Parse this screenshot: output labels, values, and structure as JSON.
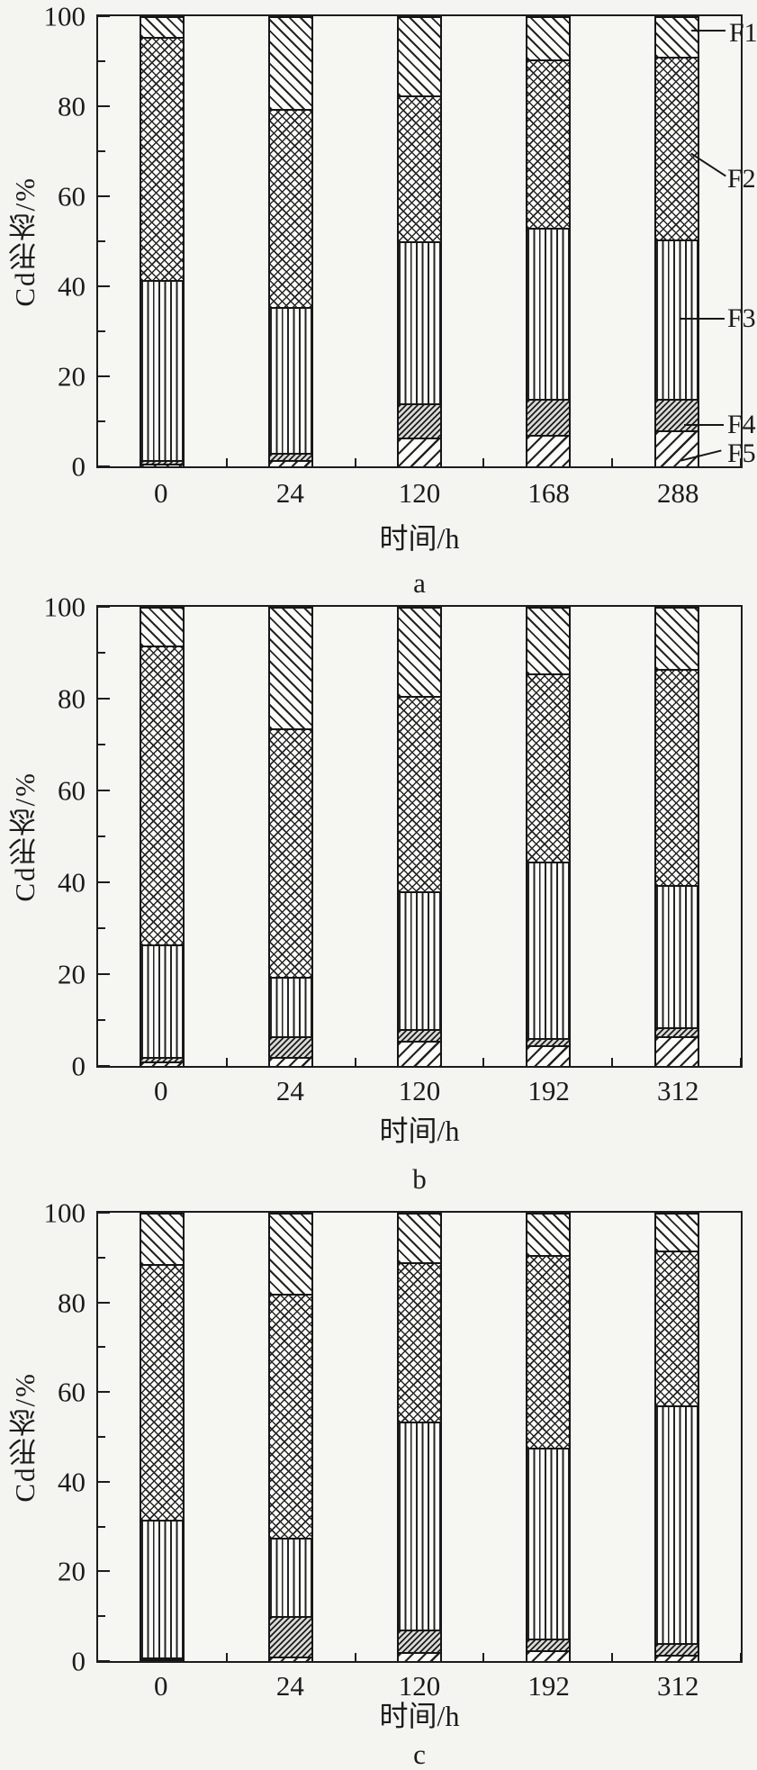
{
  "figure": {
    "ink_color": "#1c1c1c",
    "background_color": "#f4f4f1",
    "ylim": [
      0,
      100
    ]
  },
  "chart_data": [
    {
      "type": "bar",
      "stack_order": "bottom_to_top",
      "subplot_label": "a",
      "xlabel": "时间/h",
      "ylabel": "Cd形态/%",
      "ylim": [
        0,
        100
      ],
      "yticks": [
        0,
        20,
        40,
        60,
        80,
        100
      ],
      "categories": [
        "0",
        "24",
        "120",
        "168",
        "288"
      ],
      "series": [
        {
          "name": "F5",
          "values": [
            0.7,
            1.5,
            6.5,
            7,
            8
          ]
        },
        {
          "name": "F4",
          "values": [
            0.8,
            1.5,
            7.5,
            8,
            7
          ]
        },
        {
          "name": "F3",
          "values": [
            40,
            32.5,
            36,
            38,
            35.5
          ]
        },
        {
          "name": "F2",
          "values": [
            54,
            44,
            32.5,
            37.5,
            40.5
          ]
        },
        {
          "name": "F1",
          "values": [
            4.5,
            20.5,
            17.5,
            9.5,
            9
          ]
        }
      ],
      "legend_labels": [
        "F1",
        "F2",
        "F3",
        "F4",
        "F5"
      ],
      "legend_position": "right"
    },
    {
      "type": "bar",
      "stack_order": "bottom_to_top",
      "subplot_label": "b",
      "xlabel": "时间/h",
      "ylabel": "Cd形态/%",
      "ylim": [
        0,
        100
      ],
      "yticks": [
        0,
        20,
        40,
        60,
        80,
        100
      ],
      "categories": [
        "0",
        "24",
        "120",
        "192",
        "312"
      ],
      "series": [
        {
          "name": "F5",
          "values": [
            1,
            2,
            5.5,
            4.5,
            6.5
          ]
        },
        {
          "name": "F4",
          "values": [
            1,
            4.5,
            2.5,
            1.5,
            2
          ]
        },
        {
          "name": "F3",
          "values": [
            24.5,
            13,
            30,
            38.5,
            31
          ]
        },
        {
          "name": "F2",
          "values": [
            65,
            54,
            42.5,
            41,
            47
          ]
        },
        {
          "name": "F1",
          "values": [
            8.5,
            26.5,
            19.5,
            14.5,
            13.5
          ]
        }
      ],
      "legend_labels": [],
      "legend_position": "none"
    },
    {
      "type": "bar",
      "stack_order": "bottom_to_top",
      "subplot_label": "c",
      "xlabel": "时间/h",
      "ylabel": "Cd形态/%",
      "ylim": [
        0,
        100
      ],
      "yticks": [
        0,
        20,
        40,
        60,
        80,
        100
      ],
      "categories": [
        "0",
        "24",
        "120",
        "192",
        "312"
      ],
      "series": [
        {
          "name": "F5",
          "values": [
            0.4,
            1,
            2,
            2.5,
            1.5
          ]
        },
        {
          "name": "F4",
          "values": [
            0.4,
            9,
            5,
            2.5,
            2.5
          ]
        },
        {
          "name": "F3",
          "values": [
            30.7,
            17.5,
            46.5,
            42.5,
            53
          ]
        },
        {
          "name": "F2",
          "values": [
            57,
            54.5,
            35.5,
            43,
            34.5
          ]
        },
        {
          "name": "F1",
          "values": [
            11.5,
            18,
            11,
            9.5,
            8.5
          ]
        }
      ],
      "legend_labels": [],
      "legend_position": "none"
    }
  ]
}
